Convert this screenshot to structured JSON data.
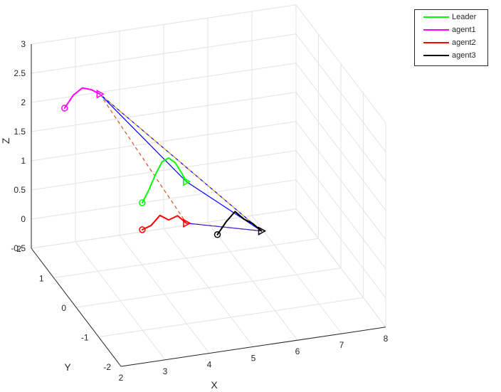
{
  "chart_data": {
    "type": "line",
    "title": "",
    "xlabel": "X",
    "ylabel": "Y",
    "zlabel": "Z",
    "x_ticks": [
      "2",
      "3",
      "4",
      "5",
      "6",
      "7",
      "8"
    ],
    "y_ticks": [
      "-2",
      "-1",
      "0",
      "1",
      "2"
    ],
    "z_ticks": [
      "-0.5",
      "0",
      "0.5",
      "1",
      "1.5",
      "2",
      "2.5",
      "3"
    ],
    "xlim": [
      2,
      8
    ],
    "ylim": [
      -2,
      2
    ],
    "zlim": [
      -0.5,
      3
    ],
    "grid": true,
    "legend_position": "top-right",
    "series": [
      {
        "name": "Leader",
        "color": "#00ff00",
        "points": [
          [
            3.7,
            0.4,
            0.9
          ],
          [
            3.85,
            0.4,
            1.1
          ],
          [
            4.0,
            0.4,
            1.35
          ],
          [
            4.15,
            0.4,
            1.55
          ],
          [
            4.3,
            0.4,
            1.6
          ],
          [
            4.45,
            0.4,
            1.5
          ],
          [
            4.6,
            0.4,
            1.3
          ],
          [
            4.7,
            0.4,
            1.15
          ]
        ]
      },
      {
        "name": "agent1",
        "color": "#ff00ff",
        "points": [
          [
            2.5,
            1.5,
            2.1
          ],
          [
            2.7,
            1.5,
            2.3
          ],
          [
            2.9,
            1.5,
            2.4
          ],
          [
            3.1,
            1.5,
            2.35
          ],
          [
            3.3,
            1.5,
            2.25
          ]
        ]
      },
      {
        "name": "agent2",
        "color": "#ff0000",
        "points": [
          [
            3.6,
            0.2,
            0.55
          ],
          [
            3.8,
            0.2,
            0.6
          ],
          [
            4.0,
            0.2,
            0.75
          ],
          [
            4.2,
            0.2,
            0.65
          ],
          [
            4.4,
            0.2,
            0.7
          ],
          [
            4.6,
            0.2,
            0.55
          ]
        ]
      },
      {
        "name": "agent3",
        "color": "#000000",
        "points": [
          [
            5.1,
            -0.2,
            0.5
          ],
          [
            5.3,
            -0.2,
            0.7
          ],
          [
            5.5,
            -0.2,
            0.85
          ],
          [
            5.7,
            -0.2,
            0.7
          ],
          [
            5.9,
            -0.2,
            0.6
          ],
          [
            6.1,
            -0.2,
            0.45
          ]
        ]
      }
    ],
    "links": [
      {
        "color": "#0000ff",
        "style": "solid",
        "from": "agent1",
        "to": "agent3"
      },
      {
        "color": "#0000ff",
        "style": "solid",
        "from": "agent1",
        "to": "Leader"
      },
      {
        "color": "#0000ff",
        "style": "solid",
        "from": "Leader",
        "to": "agent3"
      },
      {
        "color": "#0000ff",
        "style": "solid",
        "from": "agent2",
        "to": "agent3"
      },
      {
        "color": "#d95319",
        "style": "dashed",
        "from": "agent1",
        "to": "agent2"
      },
      {
        "color": "#edb120",
        "style": "dashed",
        "from": "agent1",
        "to": "agent3"
      },
      {
        "color": "#7e2f8e",
        "style": "dashed",
        "from": "agent2",
        "to": "agent3"
      }
    ]
  }
}
